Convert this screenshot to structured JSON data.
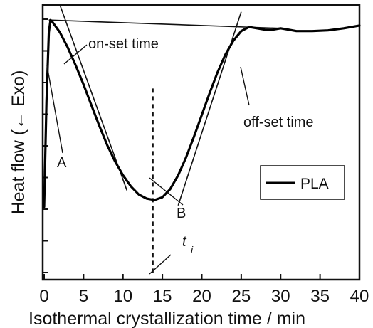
{
  "chart_data": {
    "type": "line",
    "title": "",
    "xlabel": "Isothermal crystallization time / min",
    "ylabel": "Heat flow (← Exo)",
    "xlim": [
      0,
      40
    ],
    "ticks": [
      "0",
      "5",
      "10",
      "15",
      "20",
      "25",
      "30",
      "35",
      "40"
    ],
    "tick_values": [
      0,
      5,
      10,
      15,
      20,
      25,
      30,
      35,
      40
    ],
    "y_axis_values_shown": false,
    "grid": false,
    "legend_position": "middle-right",
    "series": [
      {
        "name": "PLA",
        "points": [
          [
            0.0,
            0.06
          ],
          [
            0.3,
            1.6
          ],
          [
            0.6,
            2.6
          ],
          [
            0.8,
            2.78
          ],
          [
            1.0,
            2.76
          ],
          [
            2.0,
            2.6
          ],
          [
            3.0,
            2.38
          ],
          [
            4.0,
            2.12
          ],
          [
            5.0,
            1.84
          ],
          [
            6.0,
            1.54
          ],
          [
            7.0,
            1.24
          ],
          [
            8.0,
            0.96
          ],
          [
            9.0,
            0.72
          ],
          [
            10.0,
            0.52
          ],
          [
            11.0,
            0.36
          ],
          [
            12.0,
            0.24
          ],
          [
            13.0,
            0.18
          ],
          [
            14.0,
            0.16
          ],
          [
            15.0,
            0.2
          ],
          [
            16.0,
            0.32
          ],
          [
            17.0,
            0.52
          ],
          [
            18.0,
            0.78
          ],
          [
            19.0,
            1.08
          ],
          [
            20.0,
            1.4
          ],
          [
            21.0,
            1.72
          ],
          [
            22.0,
            2.02
          ],
          [
            23.0,
            2.28
          ],
          [
            24.0,
            2.48
          ],
          [
            25.0,
            2.62
          ],
          [
            26.0,
            2.68
          ],
          [
            27.0,
            2.66
          ],
          [
            28.0,
            2.64
          ],
          [
            29.0,
            2.64
          ],
          [
            30.0,
            2.66
          ],
          [
            31.0,
            2.64
          ],
          [
            32.0,
            2.62
          ],
          [
            34.0,
            2.62
          ],
          [
            36.0,
            2.63
          ],
          [
            38.0,
            2.66
          ],
          [
            40.0,
            2.7
          ]
        ]
      }
    ],
    "construction_lines": [
      {
        "role": "baseline",
        "points": [
          [
            0.6,
            2.78
          ],
          [
            30.0,
            2.66
          ]
        ]
      },
      {
        "role": "onset-tangent",
        "points": [
          [
            2.0,
            3.0
          ],
          [
            10.5,
            0.3
          ]
        ]
      },
      {
        "role": "offset-tangent",
        "points": [
          [
            17.0,
            0.08
          ],
          [
            25.0,
            2.9
          ]
        ]
      },
      {
        "role": "peak-time-marker",
        "style": "dashed",
        "points": [
          [
            13.8,
            -0.9
          ],
          [
            13.8,
            1.8
          ]
        ]
      }
    ],
    "annotations": {
      "onset": "on-set time",
      "offset": "off-set time",
      "a": "A",
      "b": "B",
      "ti_main": "t",
      "ti_sub": "i"
    },
    "legend_label": "PLA"
  }
}
